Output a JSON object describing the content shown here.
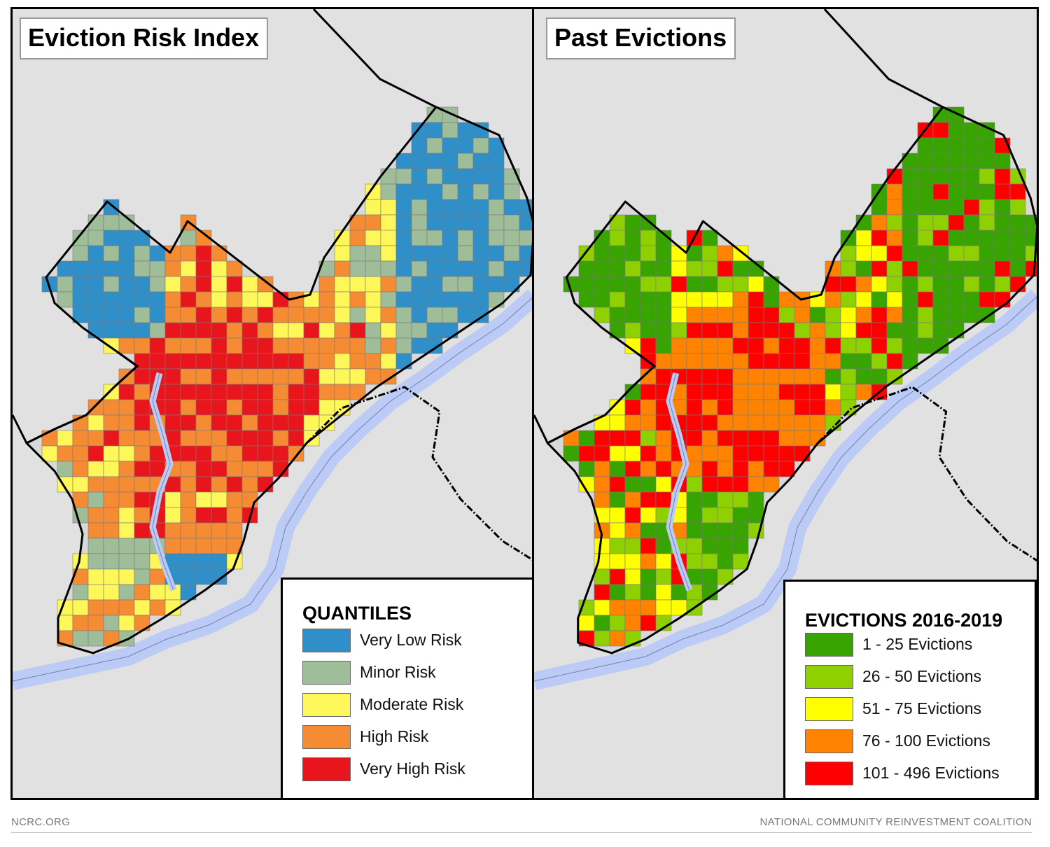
{
  "maps": [
    {
      "title": "Eviction Risk Index",
      "legend": {
        "title": "QUANTILES",
        "items": [
          {
            "label": "Very Low Risk",
            "color": "#2e8fc9"
          },
          {
            "label": "Minor Risk",
            "color": "#9ebd98"
          },
          {
            "label": "Moderate Risk",
            "color": "#fdf75a"
          },
          {
            "label": "High Risk",
            "color": "#f58b32"
          },
          {
            "label": "Very High Risk",
            "color": "#e8161c"
          }
        ]
      }
    },
    {
      "title": "Past Evictions",
      "legend": {
        "title": "EVICTIONS 2016-2019",
        "items": [
          {
            "label": "1 - 25 Evictions",
            "color": "#38a400"
          },
          {
            "label": "26 - 50 Evictions",
            "color": "#8fd100"
          },
          {
            "label": "51 - 75 Evictions",
            "color": "#ffff00"
          },
          {
            "label": "76 - 100 Evictions",
            "color": "#ff8200"
          },
          {
            "label": "101 - 496 Evictions",
            "color": "#ff0000"
          }
        ]
      }
    }
  ],
  "colors": {
    "background": "#e1e1e1",
    "river": "#bccbf5",
    "river_edge": "#6f82b4",
    "boundary": "#000000",
    "tract_line": "#7a7a7a"
  },
  "footer": {
    "left": "NCRC.ORG",
    "right": "NATIONAL COMMUNITY REINVESTMENT COALITION"
  }
}
